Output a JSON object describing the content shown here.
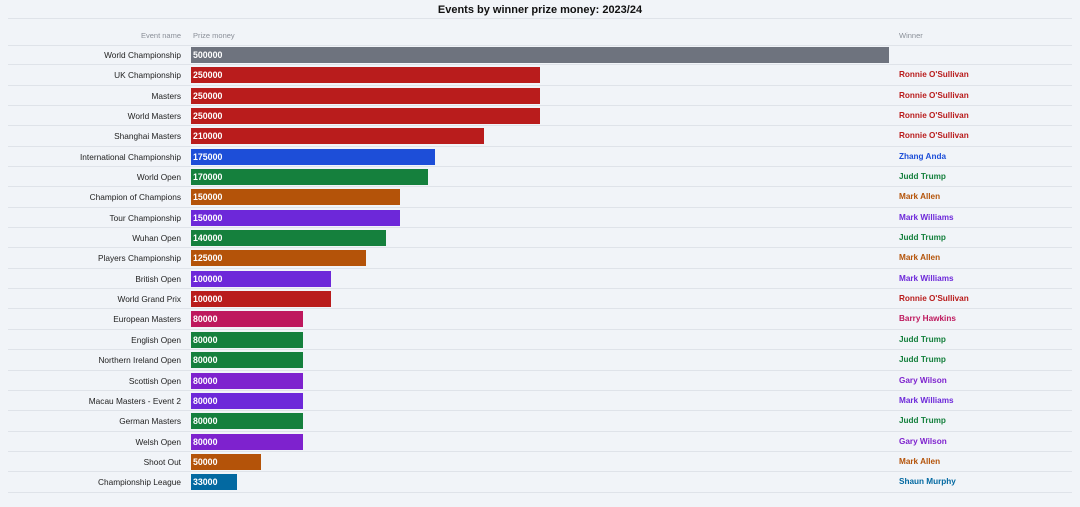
{
  "chart_data": {
    "type": "bar",
    "orientation": "horizontal",
    "title": "Events by winner prize money: 2023/24",
    "columns": {
      "event": "Event name",
      "prize": "Prize money",
      "winner": "Winner"
    },
    "xlim": [
      0,
      500000
    ],
    "grid": false,
    "rows": [
      {
        "event": "World Championship",
        "value": 500000,
        "winner": "",
        "color": "#6e737e"
      },
      {
        "event": "UK Championship",
        "value": 250000,
        "winner": "Ronnie O'Sullivan",
        "color": "#b91c1c"
      },
      {
        "event": "Masters",
        "value": 250000,
        "winner": "Ronnie O'Sullivan",
        "color": "#b91c1c"
      },
      {
        "event": "World Masters",
        "value": 250000,
        "winner": "Ronnie O'Sullivan",
        "color": "#b91c1c"
      },
      {
        "event": "Shanghai Masters",
        "value": 210000,
        "winner": "Ronnie O'Sullivan",
        "color": "#b91c1c"
      },
      {
        "event": "International Championship",
        "value": 175000,
        "winner": "Zhang Anda",
        "color": "#1d4ed8"
      },
      {
        "event": "World Open",
        "value": 170000,
        "winner": "Judd Trump",
        "color": "#15803d"
      },
      {
        "event": "Champion of Champions",
        "value": 150000,
        "winner": "Mark Allen",
        "color": "#b45309"
      },
      {
        "event": "Tour Championship",
        "value": 150000,
        "winner": "Mark Williams",
        "color": "#6d28d9"
      },
      {
        "event": "Wuhan Open",
        "value": 140000,
        "winner": "Judd Trump",
        "color": "#15803d"
      },
      {
        "event": "Players Championship",
        "value": 125000,
        "winner": "Mark Allen",
        "color": "#b45309"
      },
      {
        "event": "British Open",
        "value": 100000,
        "winner": "Mark Williams",
        "color": "#6d28d9"
      },
      {
        "event": "World Grand Prix",
        "value": 100000,
        "winner": "Ronnie O'Sullivan",
        "color": "#b91c1c"
      },
      {
        "event": "European Masters",
        "value": 80000,
        "winner": "Barry Hawkins",
        "color": "#be185d"
      },
      {
        "event": "English Open",
        "value": 80000,
        "winner": "Judd Trump",
        "color": "#15803d"
      },
      {
        "event": "Northern Ireland Open",
        "value": 80000,
        "winner": "Judd Trump",
        "color": "#15803d"
      },
      {
        "event": "Scottish Open",
        "value": 80000,
        "winner": "Gary Wilson",
        "color": "#7e22ce"
      },
      {
        "event": "Macau Masters - Event 2",
        "value": 80000,
        "winner": "Mark Williams",
        "color": "#6d28d9"
      },
      {
        "event": "German Masters",
        "value": 80000,
        "winner": "Judd Trump",
        "color": "#15803d"
      },
      {
        "event": "Welsh Open",
        "value": 80000,
        "winner": "Gary Wilson",
        "color": "#7e22ce"
      },
      {
        "event": "Shoot Out",
        "value": 50000,
        "winner": "Mark Allen",
        "color": "#b45309"
      },
      {
        "event": "Championship League",
        "value": 33000,
        "winner": "Shaun Murphy",
        "color": "#0369a1"
      }
    ]
  }
}
